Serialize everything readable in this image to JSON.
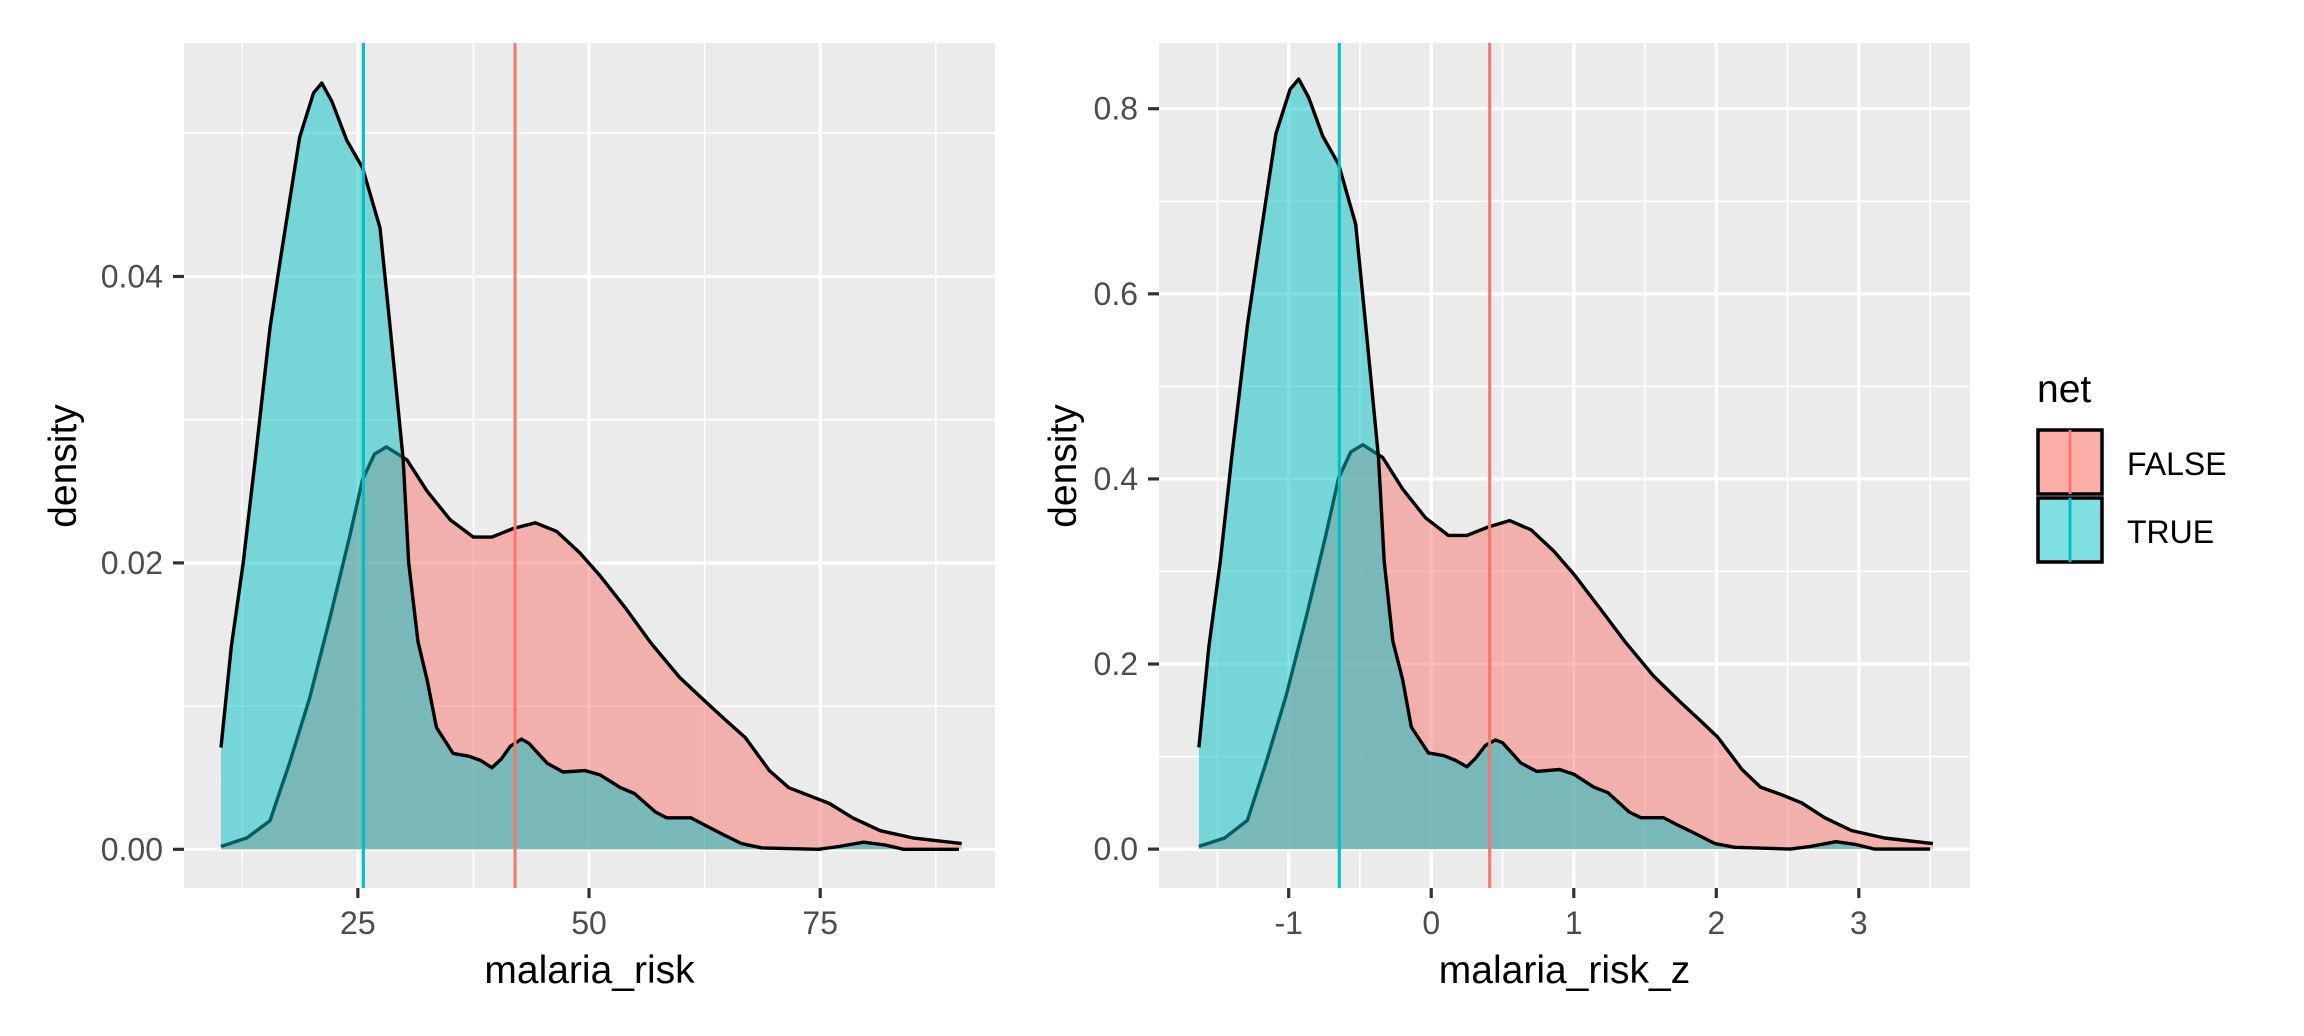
{
  "colors": {
    "FALSE": "#F8766D",
    "TRUE": "#00BFC4",
    "panel_bg": "#EBEBEB",
    "grid": "#FFFFFF",
    "outline": "#000000",
    "tick": "#333333"
  },
  "legend": {
    "title": "net",
    "items": [
      {
        "key": "FALSE",
        "label": "FALSE"
      },
      {
        "key": "TRUE",
        "label": "TRUE"
      }
    ],
    "position": "right"
  },
  "chart_data": [
    {
      "type": "area",
      "subtype": "density",
      "title": "",
      "xlabel": "malaria_risk",
      "ylabel": "density",
      "xlim": [
        6.2,
        93.9
      ],
      "ylim": [
        -0.0027,
        0.0563
      ],
      "grid": true,
      "xticks": [
        25,
        50,
        75
      ],
      "xtick_labels": [
        "25",
        "50",
        "75"
      ],
      "xminor": [
        12.5,
        37.5,
        62.5,
        87.5
      ],
      "yticks": [
        0,
        0.02,
        0.04
      ],
      "ytick_labels": [
        "0.00",
        "0.02",
        "0.04"
      ],
      "yminor": [
        0.01,
        0.03,
        0.05
      ],
      "vlines": [
        {
          "group": "FALSE",
          "x": 42.0
        },
        {
          "group": "TRUE",
          "x": 25.6
        }
      ],
      "series": [
        {
          "name": "FALSE",
          "x": [
            10.2,
            13,
            15.5,
            17.6,
            19.8,
            22.0,
            24.1,
            25.5,
            26.8,
            28.1,
            30.3,
            32.5,
            35,
            37.5,
            39.5,
            41.8,
            44.2,
            46.5,
            49,
            51.2,
            54,
            56.7,
            59.8,
            62.6,
            64.8,
            66.9,
            69.5,
            71.6,
            74,
            76,
            78.5,
            81.5,
            85,
            90.3
          ],
          "y": [
            0.0002,
            0.0008,
            0.002,
            0.006,
            0.0106,
            0.0162,
            0.0218,
            0.0258,
            0.0276,
            0.0281,
            0.0272,
            0.025,
            0.023,
            0.0218,
            0.0218,
            0.0224,
            0.0228,
            0.0222,
            0.0207,
            0.0191,
            0.0168,
            0.0144,
            0.012,
            0.0103,
            0.009,
            0.0078,
            0.0055,
            0.0043,
            0.0037,
            0.0032,
            0.0022,
            0.0013,
            0.0008,
            0.0004
          ]
        },
        {
          "name": "TRUE",
          "x": [
            10.2,
            11.3,
            12.6,
            13.9,
            15.5,
            16.6,
            18.7,
            20.2,
            21.1,
            22.2,
            23.8,
            25.5,
            27.4,
            28.5,
            29.9,
            30.5,
            31.5,
            32.5,
            33.5,
            35.3,
            37,
            38.3,
            39.5,
            40.5,
            41.5,
            42.7,
            43.5,
            45.5,
            47.2,
            49.6,
            51.2,
            53.4,
            54.9,
            57.2,
            58.4,
            61,
            62.5,
            64.3,
            66.5,
            68.7,
            74.8,
            77,
            79.7,
            82,
            84,
            90
          ],
          "y": [
            0.0071,
            0.0141,
            0.02,
            0.0272,
            0.0364,
            0.0411,
            0.0497,
            0.0528,
            0.0535,
            0.0522,
            0.0495,
            0.0476,
            0.0434,
            0.0364,
            0.0272,
            0.02,
            0.0145,
            0.0118,
            0.0085,
            0.0067,
            0.0065,
            0.0062,
            0.0057,
            0.0063,
            0.0072,
            0.0077,
            0.0074,
            0.006,
            0.0054,
            0.0055,
            0.0052,
            0.0043,
            0.0039,
            0.0026,
            0.0022,
            0.0022,
            0.0017,
            0.0011,
            0.0004,
            0.0001,
            0.0,
            0.0002,
            0.0005,
            0.0003,
            0.0,
            0.0
          ]
        }
      ]
    },
    {
      "type": "area",
      "subtype": "density",
      "title": "",
      "xlabel": "malaria_risk_z",
      "ylabel": "density",
      "xlim": [
        -1.91,
        3.78
      ],
      "ylim": [
        -0.042,
        0.871
      ],
      "grid": true,
      "xticks": [
        -1,
        0,
        1,
        2,
        3
      ],
      "xtick_labels": [
        "-1",
        "0",
        "1",
        "2",
        "3"
      ],
      "xminor": [
        -1.5,
        -0.5,
        0.5,
        1.5,
        2.5,
        3.5
      ],
      "yticks": [
        0,
        0.2,
        0.4,
        0.6,
        0.8
      ],
      "ytick_labels": [
        "0.0",
        "0.2",
        "0.4",
        "0.6",
        "0.8"
      ],
      "yminor": [
        0.1,
        0.3,
        0.5,
        0.7
      ],
      "vlines": [
        {
          "group": "FALSE",
          "x": 0.41
        },
        {
          "group": "TRUE",
          "x": -0.645
        }
      ],
      "series": [
        {
          "name": "FALSE",
          "x": [
            -1.63,
            -1.45,
            -1.29,
            -1.16,
            -1.02,
            -0.875,
            -0.74,
            -0.65,
            -0.565,
            -0.48,
            -0.34,
            -0.2,
            -0.04,
            0.12,
            0.25,
            0.4,
            0.55,
            0.7,
            0.86,
            1.0,
            1.18,
            1.36,
            1.56,
            1.74,
            1.88,
            2.01,
            2.18,
            2.31,
            2.47,
            2.6,
            2.76,
            2.95,
            3.18,
            3.52
          ],
          "y": [
            0.003,
            0.012,
            0.031,
            0.093,
            0.165,
            0.252,
            0.339,
            0.401,
            0.429,
            0.437,
            0.423,
            0.389,
            0.358,
            0.339,
            0.339,
            0.348,
            0.355,
            0.345,
            0.322,
            0.297,
            0.261,
            0.224,
            0.187,
            0.16,
            0.14,
            0.121,
            0.086,
            0.067,
            0.058,
            0.05,
            0.034,
            0.02,
            0.012,
            0.006
          ]
        },
        {
          "name": "TRUE",
          "x": [
            -1.63,
            -1.56,
            -1.48,
            -1.4,
            -1.29,
            -1.22,
            -1.09,
            -0.99,
            -0.93,
            -0.86,
            -0.76,
            -0.65,
            -0.53,
            -0.46,
            -0.37,
            -0.33,
            -0.27,
            -0.2,
            -0.14,
            -0.02,
            0.09,
            0.17,
            0.25,
            0.31,
            0.38,
            0.45,
            0.5,
            0.63,
            0.74,
            0.9,
            1.0,
            1.14,
            1.24,
            1.39,
            1.47,
            1.63,
            1.73,
            1.85,
            1.99,
            2.13,
            2.52,
            2.66,
            2.84,
            2.98,
            3.11,
            3.5
          ],
          "y": [
            0.11,
            0.219,
            0.311,
            0.423,
            0.566,
            0.639,
            0.773,
            0.821,
            0.832,
            0.812,
            0.77,
            0.74,
            0.675,
            0.566,
            0.423,
            0.311,
            0.225,
            0.183,
            0.132,
            0.104,
            0.101,
            0.096,
            0.089,
            0.098,
            0.112,
            0.118,
            0.115,
            0.093,
            0.084,
            0.086,
            0.081,
            0.067,
            0.061,
            0.04,
            0.034,
            0.034,
            0.026,
            0.017,
            0.006,
            0.002,
            0.0,
            0.003,
            0.008,
            0.005,
            0.0,
            0.0
          ]
        }
      ]
    }
  ]
}
